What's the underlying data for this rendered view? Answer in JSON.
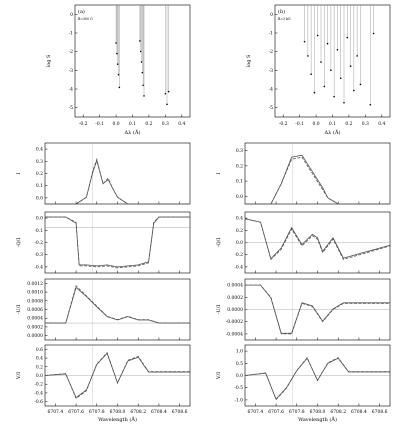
{
  "chart_data": [
    {
      "id": "a",
      "type": "stem",
      "panel_label": "(a)",
      "field_label": "B=300 G",
      "xlabel": "Δλ (Å)",
      "ylabel": "log S",
      "xlim": [
        -0.3,
        0.4
      ],
      "ylim": [
        -5,
        0.3
      ],
      "xticks": [
        "-0.2",
        "-0.1",
        "0.0",
        "0.1",
        "0.2",
        "0.3",
        "0.4"
      ],
      "yticks": [
        "0",
        "-1",
        "-2",
        "-3",
        "-4",
        "-5"
      ],
      "x": [
        -0.05,
        -0.045,
        -0.04,
        -0.035,
        -0.03,
        0.095,
        0.1,
        0.105,
        0.11,
        0.115,
        0.12,
        0.25,
        0.26,
        0.27
      ],
      "y": [
        -1.5,
        -2.0,
        -2.5,
        -3.0,
        -3.6,
        -1.4,
        -1.9,
        -2.4,
        -2.9,
        -3.5,
        -4.0,
        -3.9,
        -4.4,
        -3.8
      ]
    },
    {
      "id": "b",
      "type": "stem",
      "panel_label": "(b)",
      "field_label": "B=3 kG",
      "xlabel": "Δλ (Å)",
      "ylabel": "log S",
      "xlim": [
        -0.3,
        0.4
      ],
      "ylim": [
        -5.2,
        0.3
      ],
      "xticks": [
        "-0.2",
        "-0.1",
        "0.0",
        "0.1",
        "0.2",
        "0.3",
        "0.4"
      ],
      "yticks": [
        "0",
        "-1",
        "-2",
        "-3",
        "-4",
        "-5"
      ],
      "x": [
        -0.12,
        -0.1,
        -0.08,
        -0.06,
        -0.04,
        -0.02,
        0.0,
        0.02,
        0.04,
        0.06,
        0.08,
        0.1,
        0.12,
        0.14,
        0.16,
        0.18,
        0.2,
        0.22,
        0.28,
        0.3
      ],
      "y": [
        -1.5,
        -2.2,
        -3.1,
        -4.0,
        -1.2,
        -2.5,
        -3.7,
        -1.6,
        -2.9,
        -4.2,
        -1.9,
        -3.3,
        -4.5,
        -1.3,
        -2.7,
        -3.9,
        -2.2,
        -3.6,
        -4.6,
        -1.1
      ]
    },
    {
      "id": "I_a",
      "type": "line",
      "ylabel": "I",
      "xlim": [
        6707.3,
        6708.7
      ],
      "ylim": [
        0,
        0.45
      ],
      "yticks": [
        "0.4",
        "0.3",
        "0.2",
        "0.1",
        "0.0"
      ],
      "x": [
        6707.3,
        6707.6,
        6707.7,
        6707.76,
        6707.8,
        6707.86,
        6707.91,
        6707.95,
        6708.0,
        6708.1,
        6708.7
      ],
      "series": [
        {
          "y": [
            0,
            0,
            0.05,
            0.24,
            0.33,
            0.15,
            0.19,
            0.12,
            0.05,
            0,
            0
          ]
        },
        {
          "y": [
            0,
            0,
            0.05,
            0.23,
            0.32,
            0.15,
            0.18,
            0.12,
            0.05,
            0,
            0
          ]
        }
      ]
    },
    {
      "id": "I_b",
      "type": "line",
      "ylabel": "I",
      "xlim": [
        6707.3,
        6708.7
      ],
      "ylim": [
        0,
        0.3
      ],
      "yticks": [
        "0.3",
        "0.2",
        "0.1",
        "0.0"
      ],
      "x": [
        6707.3,
        6707.55,
        6707.65,
        6707.75,
        6707.85,
        6707.95,
        6708.05,
        6708.1,
        6708.2,
        6708.7
      ],
      "series": [
        {
          "y": [
            0,
            0,
            0.1,
            0.22,
            0.23,
            0.15,
            0.07,
            0.03,
            0,
            0
          ]
        },
        {
          "y": [
            0,
            0,
            0.1,
            0.23,
            0.24,
            0.16,
            0.08,
            0.03,
            0,
            0
          ]
        }
      ]
    },
    {
      "id": "Q_a",
      "type": "line",
      "ylabel": "-Q/I",
      "xlim": [
        6707.3,
        6708.7
      ],
      "ylim": [
        -0.45,
        0.15
      ],
      "yticks": [
        "0.0",
        "-0.1",
        "-0.2",
        "-0.3",
        "-0.4"
      ],
      "x": [
        6707.3,
        6707.5,
        6707.6,
        6707.63,
        6707.7,
        6707.8,
        6707.9,
        6708.0,
        6708.1,
        6708.2,
        6708.3,
        6708.35,
        6708.4,
        6708.7
      ],
      "series": [
        {
          "y": [
            0.1,
            0.1,
            0.05,
            -0.38,
            -0.38,
            -0.39,
            -0.38,
            -0.4,
            -0.39,
            -0.38,
            -0.35,
            0.05,
            0.1,
            0.1
          ]
        },
        {
          "y": [
            0.1,
            0.1,
            0.04,
            -0.37,
            -0.37,
            -0.38,
            -0.37,
            -0.39,
            -0.38,
            -0.37,
            -0.34,
            0.04,
            0.1,
            0.1
          ]
        }
      ]
    },
    {
      "id": "Q_b",
      "type": "line",
      "ylabel": "-Q/I",
      "xlim": [
        6707.3,
        6708.7
      ],
      "ylim": [
        -0.45,
        0.45
      ],
      "yticks": [
        "0.4",
        "0.2",
        "0.0",
        "-0.2",
        "-0.4"
      ],
      "x": [
        6707.3,
        6707.45,
        6707.55,
        6707.65,
        6707.75,
        6707.85,
        6707.95,
        6708.0,
        6708.05,
        6708.15,
        6708.25,
        6708.7
      ],
      "series": [
        {
          "y": [
            0.35,
            0.3,
            -0.25,
            -0.1,
            0.2,
            -0.05,
            0.1,
            0.05,
            -0.15,
            0.05,
            -0.25,
            -0.05
          ]
        },
        {
          "y": [
            0.35,
            0.3,
            -0.24,
            -0.08,
            0.22,
            -0.03,
            0.12,
            0.07,
            -0.13,
            0.07,
            -0.23,
            -0.04
          ]
        }
      ]
    },
    {
      "id": "U_a",
      "type": "line",
      "ylabel": "-U/I",
      "xlim": [
        6707.3,
        6708.7
      ],
      "ylim": [
        -5e-05,
        0.00013
      ],
      "yticks": [
        "0.0012",
        "0.0010",
        "0.0008",
        "0.0006",
        "0.0004",
        "0.0002",
        "0.0000"
      ],
      "x": [
        6707.3,
        6707.5,
        6707.6,
        6707.7,
        6707.8,
        6707.9,
        6708.0,
        6708.1,
        6708.2,
        6708.3,
        6708.4,
        6708.7
      ],
      "series": [
        {
          "y": [
            0,
            0,
            0.00011,
            8e-05,
            5e-05,
            2e-05,
            1e-05,
            2e-05,
            1e-05,
            1e-05,
            0,
            0
          ]
        },
        {
          "y": [
            0,
            0,
            0.000105,
            7.8e-05,
            4.8e-05,
            1.9e-05,
            9e-06,
            1.9e-05,
            9e-06,
            9e-06,
            0,
            0
          ]
        }
      ]
    },
    {
      "id": "U_b",
      "type": "line",
      "ylabel": "-U/I",
      "xlim": [
        6707.3,
        6708.7
      ],
      "ylim": [
        -0.0005,
        0.0005
      ],
      "yticks": [
        "0.0004",
        "0.0002",
        "0.0000",
        "-0.0002",
        "-0.0004"
      ],
      "x": [
        6707.3,
        6707.45,
        6707.55,
        6707.65,
        6707.75,
        6707.85,
        6707.95,
        6708.05,
        6708.15,
        6708.25,
        6708.7
      ],
      "series": [
        {
          "y": [
            0.0004,
            0.0004,
            0.0002,
            -0.0004,
            -0.0004,
            0.0001,
            5e-05,
            -0.0002,
            0,
            0.0001,
            0.0001
          ]
        },
        {
          "y": [
            0.0004,
            0.0004,
            0.00019,
            -0.00039,
            -0.00039,
            0.00011,
            6e-05,
            -0.00019,
            1e-05,
            0.00011,
            0.00011
          ]
        }
      ]
    },
    {
      "id": "V_a",
      "type": "line",
      "ylabel": "V/I",
      "xlim": [
        6707.3,
        6708.7
      ],
      "ylim": [
        -0.8,
        0.8
      ],
      "yticks": [
        "0.6",
        "0.4",
        "0.2",
        "0.0",
        "-0.2",
        "-0.4",
        "-0.6"
      ],
      "x": [
        6707.3,
        6707.5,
        6707.6,
        6707.7,
        6707.8,
        6707.9,
        6708.0,
        6708.1,
        6708.2,
        6708.3,
        6708.7
      ],
      "series": [
        {
          "y": [
            0,
            0.05,
            -0.6,
            -0.4,
            0.3,
            0.6,
            -0.2,
            0.4,
            0.5,
            0.1,
            0.1
          ]
        },
        {
          "y": [
            0,
            0.04,
            -0.58,
            -0.38,
            0.29,
            0.58,
            -0.19,
            0.38,
            0.48,
            0.09,
            0.09
          ]
        }
      ]
    },
    {
      "id": "V_b",
      "type": "line",
      "ylabel": "V/I",
      "xlim": [
        6707.3,
        6708.7
      ],
      "ylim": [
        -1.2,
        1.2
      ],
      "yticks": [
        "1.0",
        "0.5",
        "0.0",
        "-0.5",
        "-1.0"
      ],
      "x": [
        6707.3,
        6707.5,
        6707.6,
        6707.7,
        6707.8,
        6707.9,
        6708.0,
        6708.1,
        6708.2,
        6708.3,
        6708.7
      ],
      "series": [
        {
          "y": [
            0,
            0.1,
            -0.95,
            -0.5,
            0.2,
            0.7,
            -0.2,
            0.5,
            0.7,
            0.15,
            0.15
          ]
        },
        {
          "y": [
            0,
            0.09,
            -0.93,
            -0.48,
            0.19,
            0.68,
            -0.19,
            0.48,
            0.68,
            0.14,
            0.14
          ]
        }
      ]
    }
  ],
  "wavelength_axis": {
    "label": "Wavelength (Å)",
    "ticks": [
      "6707.4",
      "6707.6",
      "6707.8",
      "6708.0",
      "6708.2",
      "6708.4",
      "6708.6"
    ],
    "tick_values": [
      6707.4,
      6707.6,
      6707.8,
      6708.0,
      6708.2,
      6708.4,
      6708.6
    ]
  },
  "line_color": "#555555"
}
